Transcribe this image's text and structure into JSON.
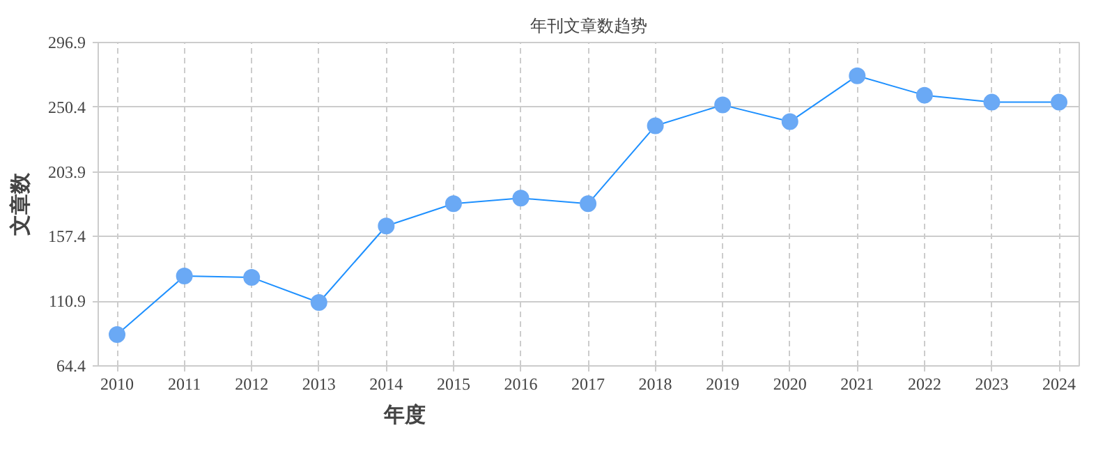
{
  "chart_data": {
    "type": "line",
    "title": "年刊文章数趋势",
    "xlabel": "年度",
    "ylabel": "文章数",
    "categories": [
      "2010",
      "2011",
      "2012",
      "2013",
      "2014",
      "2015",
      "2016",
      "2017",
      "2018",
      "2019",
      "2020",
      "2021",
      "2022",
      "2023",
      "2024"
    ],
    "series": [
      {
        "color": "#1e90ff",
        "values": [
          87,
          129,
          128,
          110,
          165,
          181,
          185,
          181,
          237,
          252,
          240,
          273,
          259,
          254,
          254
        ]
      }
    ],
    "ylim": [
      64.4,
      296.9
    ],
    "yticks": [
      64.4,
      110.9,
      157.4,
      203.9,
      250.4,
      296.9
    ],
    "grid": true,
    "marker": "circle",
    "line_style": "solid"
  }
}
